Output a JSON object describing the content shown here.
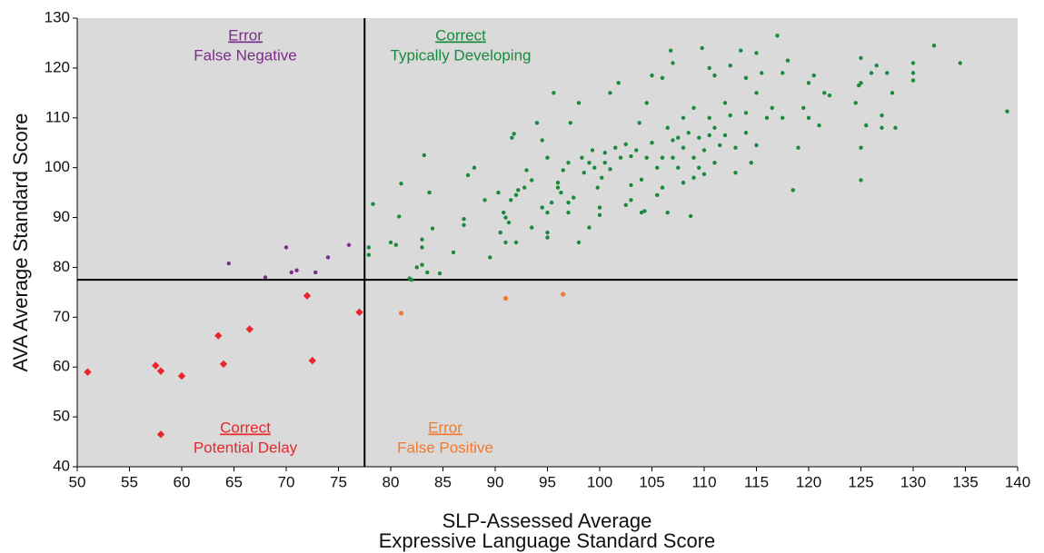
{
  "chart_data": {
    "type": "scatter",
    "xlabel": [
      "SLP-Assessed Average",
      "Expressive Language Standard Score"
    ],
    "ylabel": "AVA Average Standard Score",
    "xlim": [
      50,
      140
    ],
    "ylim": [
      40,
      130
    ],
    "xticks": [
      50,
      55,
      60,
      65,
      70,
      75,
      80,
      85,
      90,
      95,
      100,
      105,
      110,
      115,
      120,
      125,
      130,
      135,
      140
    ],
    "yticks": [
      40,
      50,
      60,
      70,
      80,
      90,
      100,
      110,
      120,
      130
    ],
    "thresholds": {
      "x": 77.5,
      "y": 77.5
    },
    "series": [
      {
        "status": "Error",
        "name": "False Negative",
        "color": "#7b2d8b",
        "marker": "circle",
        "x": [
          64.5,
          68,
          70,
          70.5,
          71,
          72.8,
          74,
          76
        ],
        "y": [
          80.8,
          78,
          84,
          79,
          79.4,
          79,
          82,
          84.5
        ]
      },
      {
        "status": "Correct",
        "name": "Typically Developing",
        "color": "#1a8a3c",
        "marker": "circle",
        "x": [
          77.9,
          77.9,
          78.3,
          80,
          80.5,
          80.8,
          81,
          81.8,
          82,
          82.5,
          83,
          83,
          83,
          83.2,
          83.5,
          83.7,
          84,
          84.7,
          86,
          87,
          87,
          87.4,
          88,
          89,
          89.5,
          90.3,
          90.5,
          90.8,
          91,
          91,
          91.3,
          91.5,
          91.6,
          91.8,
          92,
          92,
          92.2,
          92.8,
          93,
          93.5,
          93.5,
          94,
          94.5,
          94.5,
          95,
          95,
          95,
          95,
          95.4,
          95.6,
          96,
          96,
          96.3,
          96.5,
          97,
          97,
          97,
          97.2,
          97.5,
          98,
          98,
          98.3,
          98.5,
          99,
          99,
          99.3,
          99.5,
          99.8,
          100,
          100,
          100.2,
          100.5,
          100.5,
          101,
          101,
          101.5,
          101.8,
          102,
          102.5,
          102.5,
          103,
          103,
          103,
          103.5,
          103.8,
          104,
          104,
          104.3,
          104.5,
          104.5,
          105,
          105.5,
          105,
          105.5,
          106,
          106,
          106,
          106.5,
          106.5,
          106.8,
          107,
          107,
          107,
          107.5,
          107.5,
          108,
          108,
          108,
          108.5,
          108.7,
          109,
          109,
          109,
          109.5,
          109.5,
          109.8,
          110,
          110,
          110.5,
          110.5,
          110.5,
          111,
          111,
          111,
          111.5,
          112,
          112,
          112.5,
          112.5,
          113,
          113,
          113.5,
          114,
          114,
          114,
          114.5,
          115,
          115,
          115,
          115.5,
          116,
          116.5,
          117,
          117.5,
          117.5,
          118,
          118.5,
          119,
          119.5,
          120,
          120,
          120.5,
          121,
          121.5,
          122,
          124.5,
          124.8,
          125,
          125,
          125,
          125,
          125.5,
          126,
          126.5,
          127,
          127,
          127.5,
          128,
          128.3,
          130,
          130,
          130,
          132,
          134.5,
          139
        ],
        "y": [
          84,
          82.5,
          92.7,
          85,
          84.5,
          90.2,
          96.8,
          77.8,
          77.5,
          80,
          80.5,
          85.6,
          84,
          102.5,
          79,
          95,
          87.8,
          78.8,
          83,
          89.7,
          88.5,
          98.5,
          100,
          93.5,
          82,
          95,
          87,
          91,
          90,
          85,
          89,
          93.5,
          106,
          106.8,
          94.5,
          85,
          95.5,
          96,
          99.5,
          97.5,
          88,
          109,
          92,
          105.5,
          91,
          87,
          86,
          102,
          93,
          115,
          97,
          96,
          95,
          99.5,
          101,
          93,
          91,
          109,
          94,
          113,
          85,
          102,
          99,
          101,
          88,
          103.5,
          100,
          96,
          92,
          90.5,
          98,
          103,
          101,
          99.7,
          115,
          104,
          117,
          102,
          104.7,
          92.5,
          96.5,
          102.3,
          93.5,
          103.5,
          109,
          97.6,
          91,
          91.3,
          102,
          113,
          118.5,
          100,
          105,
          94.5,
          118,
          102,
          96,
          108,
          91,
          123.5,
          121,
          105.5,
          102,
          106,
          100,
          110,
          104,
          97,
          107,
          90.3,
          112,
          102,
          98,
          106,
          100,
          124,
          103.5,
          98.7,
          120,
          110,
          106.5,
          118.5,
          108,
          101,
          104.5,
          113,
          106.5,
          120.5,
          110.5,
          104,
          99,
          123.5,
          118,
          111,
          107,
          101,
          123,
          115,
          104.5,
          119,
          110,
          112,
          126.5,
          110,
          119,
          121.5,
          95.5,
          104,
          112,
          110,
          117,
          118.5,
          108.5,
          115,
          114.5,
          113,
          116.5,
          122,
          117,
          104,
          97.5,
          108.5,
          119,
          120.5,
          110.5,
          108,
          119,
          115,
          108,
          121,
          119,
          117.5,
          124.5,
          121,
          111.3
        ]
      },
      {
        "status": "Correct",
        "name": "Potential Delay",
        "color": "#e8262b",
        "marker": "diamond",
        "x": [
          51,
          57.5,
          58,
          58,
          60,
          63.5,
          64,
          66.5,
          72,
          72.5,
          77
        ],
        "y": [
          59,
          60.3,
          59.2,
          46.5,
          58.2,
          66.3,
          60.6,
          67.6,
          74.3,
          61.3,
          71
        ]
      },
      {
        "status": "Error",
        "name": "False Positive",
        "color": "#f07a30",
        "marker": "circle",
        "x": [
          81,
          91,
          96.5
        ],
        "y": [
          70.8,
          73.8,
          74.6
        ]
      }
    ]
  }
}
